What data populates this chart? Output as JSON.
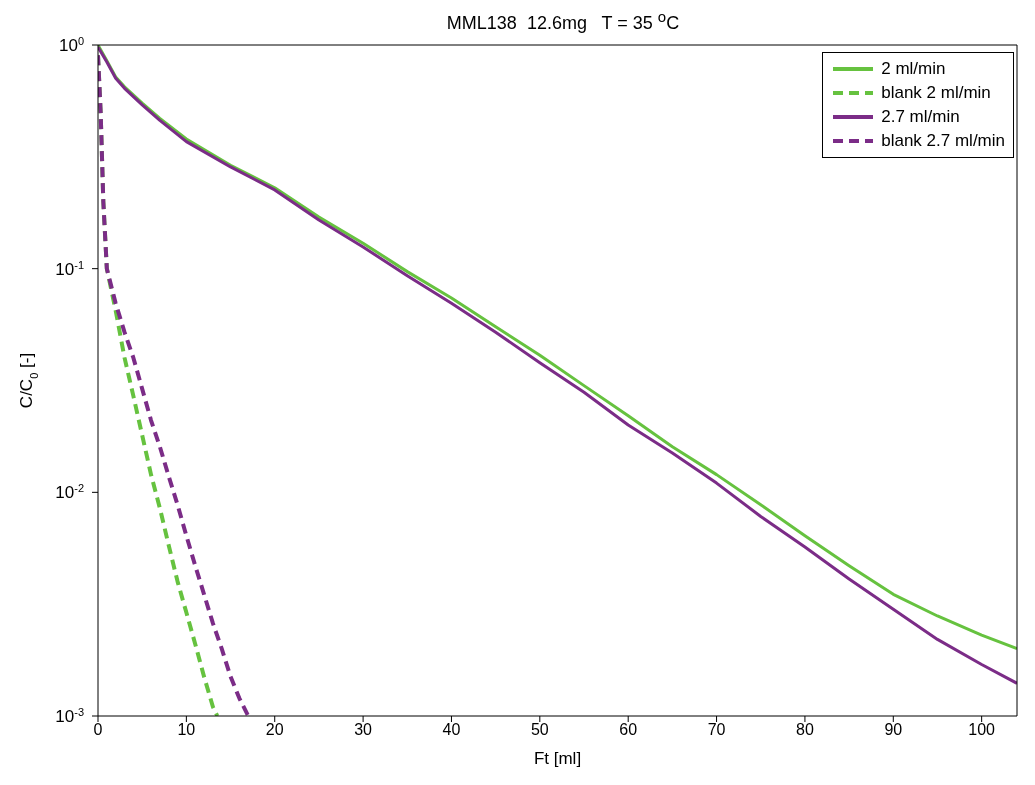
{
  "chart_data": {
    "type": "line",
    "title": "MML138  12.6mg   T = 35 $^{o}$C",
    "xlabel": "Ft [ml]",
    "ylabel": "C/C$_{0}$ [-]",
    "log": "y",
    "xlim": [
      0,
      104
    ],
    "xticks": [
      0,
      10,
      20,
      30,
      40,
      50,
      60,
      70,
      80,
      90,
      100
    ],
    "ylim": [
      0.001,
      1
    ],
    "yticks": [
      {
        "value": 0.001,
        "label": "10$^{-3}$"
      },
      {
        "value": 0.01,
        "label": "10$^{-2}$"
      },
      {
        "value": 0.1,
        "label": "10$^{-1}$"
      },
      {
        "value": 1,
        "label": "10$^{0}$"
      }
    ],
    "legend": "top right",
    "marker": "none",
    "series": [
      {
        "name": "2 ml/min",
        "color": "#66c23f",
        "line_style": "solid",
        "x": [
          0,
          1,
          2,
          3,
          5,
          7,
          10,
          15,
          20,
          25,
          30,
          35,
          40,
          45,
          50,
          55,
          60,
          65,
          70,
          75,
          80,
          85,
          90,
          95,
          100,
          104
        ],
        "values": [
          1,
          0.85,
          0.72,
          0.65,
          0.55,
          0.47,
          0.38,
          0.29,
          0.23,
          0.17,
          0.13,
          0.097,
          0.074,
          0.055,
          0.041,
          0.03,
          0.022,
          0.016,
          0.012,
          0.0088,
          0.0064,
          0.0047,
          0.0035,
          0.0028,
          0.0023,
          0.002
        ]
      },
      {
        "name": "blank 2 ml/min",
        "color": "#66c23f",
        "line_style": "dashed",
        "x": [
          0,
          0.3,
          0.6,
          1,
          2,
          3,
          4,
          5,
          6,
          7,
          8,
          9,
          10,
          11,
          12,
          13,
          13.5
        ],
        "values": [
          0.9,
          0.5,
          0.2,
          0.1,
          0.065,
          0.04,
          0.027,
          0.018,
          0.012,
          0.0085,
          0.0058,
          0.004,
          0.0029,
          0.0021,
          0.0015,
          0.0011,
          0.001
        ]
      },
      {
        "name": "2.7 ml/min",
        "color": "#7b2c87",
        "line_style": "solid",
        "x": [
          0,
          1,
          2,
          3,
          5,
          7,
          10,
          15,
          20,
          25,
          30,
          35,
          40,
          45,
          50,
          55,
          60,
          65,
          70,
          75,
          80,
          85,
          90,
          95,
          100,
          104
        ],
        "values": [
          0.98,
          0.84,
          0.71,
          0.64,
          0.54,
          0.46,
          0.37,
          0.285,
          0.225,
          0.165,
          0.125,
          0.093,
          0.07,
          0.052,
          0.038,
          0.028,
          0.02,
          0.015,
          0.011,
          0.0078,
          0.0057,
          0.0041,
          0.003,
          0.0022,
          0.0017,
          0.0014
        ]
      },
      {
        "name": "blank 2.7 ml/min",
        "color": "#7b2c87",
        "line_style": "dashed",
        "x": [
          0,
          0.3,
          0.6,
          1,
          2,
          3,
          4,
          5,
          6,
          7,
          8,
          9,
          10,
          11,
          12,
          13,
          14,
          15,
          16,
          17
        ],
        "values": [
          0.9,
          0.5,
          0.2,
          0.1,
          0.07,
          0.052,
          0.04,
          0.029,
          0.021,
          0.016,
          0.0118,
          0.0088,
          0.0064,
          0.0047,
          0.0035,
          0.0026,
          0.002,
          0.0015,
          0.0012,
          0.001
        ]
      }
    ]
  }
}
